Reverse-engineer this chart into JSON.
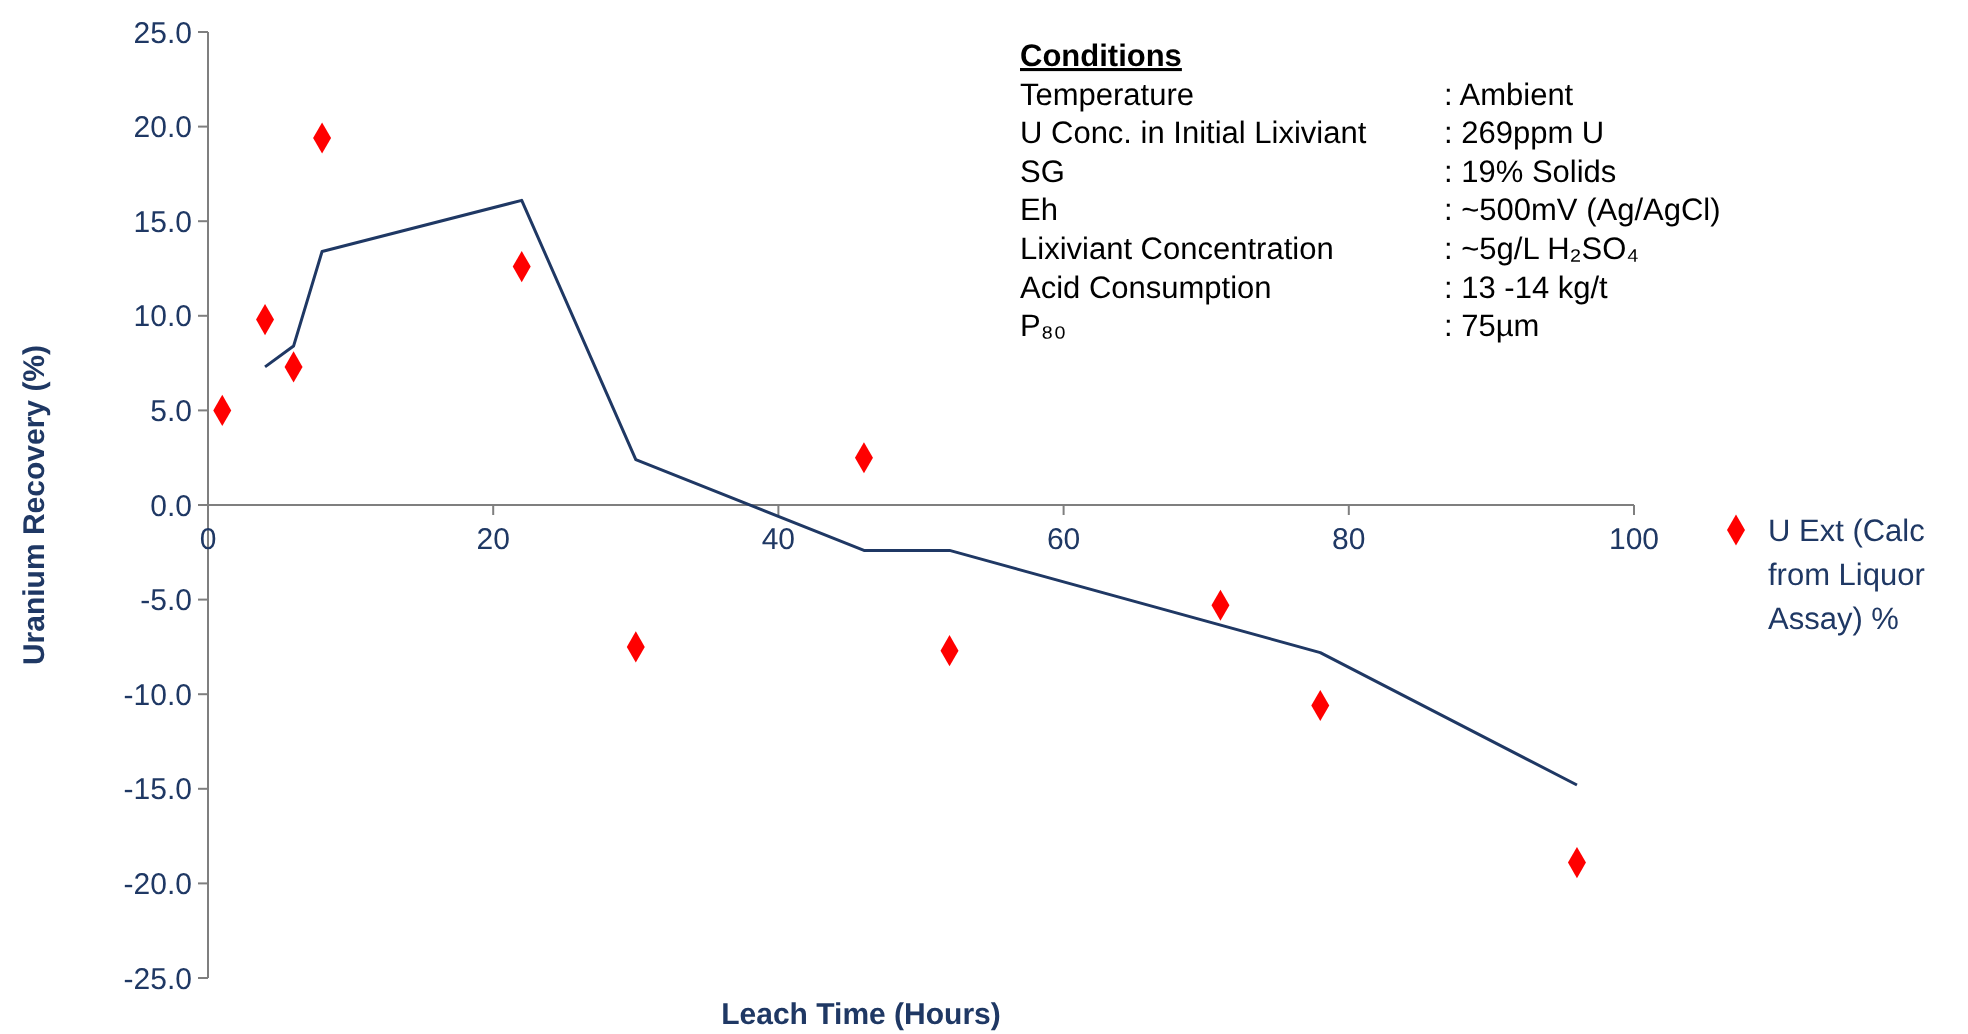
{
  "chart_data": {
    "type": "scatter",
    "xlabel": "Leach Time (Hours)",
    "ylabel": "Uranium Recovery (%)",
    "xlim": [
      0,
      100
    ],
    "xticks": [
      0,
      20,
      40,
      60,
      80,
      100
    ],
    "ylim": [
      -25,
      25
    ],
    "yticks": [
      {
        "value": -25,
        "label": "-25.0"
      },
      {
        "value": -20,
        "label": "-20.0"
      },
      {
        "value": -15,
        "label": "-15.0"
      },
      {
        "value": -10,
        "label": "-10.0"
      },
      {
        "value": -5,
        "label": "-5.0"
      },
      {
        "value": 0,
        "label": "0.0"
      },
      {
        "value": 5,
        "label": "5.0"
      },
      {
        "value": 10,
        "label": "10.0"
      },
      {
        "value": 15,
        "label": "15.0"
      },
      {
        "value": 20,
        "label": "20.0"
      },
      {
        "value": 25,
        "label": "25.0"
      }
    ],
    "grid": false,
    "legend": "right",
    "marker": "diamond",
    "series": [
      {
        "name": "U Ext (Calc from Liquor Assay) %",
        "color": "#ff0000",
        "x": [
          1,
          4,
          6,
          8,
          22,
          30,
          46,
          52,
          71,
          78,
          96
        ],
        "values": [
          5.0,
          9.8,
          7.3,
          19.4,
          12.6,
          -7.5,
          2.5,
          -7.7,
          -5.3,
          -10.6,
          -18.9
        ]
      },
      {
        "type": "line",
        "color": "#1f3864",
        "line_style": "solid",
        "marker": "none",
        "x": [
          4,
          6,
          8,
          22,
          30,
          46,
          52,
          78,
          96
        ],
        "values": [
          7.3,
          8.4,
          13.4,
          16.1,
          2.4,
          -2.4,
          -2.4,
          -7.8,
          -14.8
        ]
      }
    ],
    "annotations": [
      "Conditions",
      "Temperature",
      ":  Ambient",
      "U Conc. in Initial Lixiviant",
      ": 269ppm U",
      "SG",
      ": 19% Solids",
      "Eh",
      ": ~500mV (Ag/AgCl)",
      "Lixiviant Concentration",
      ": ~5g/L H₂SO₄",
      "Acid Consumption",
      ": 13 -14 kg/t",
      "P₈₀",
      ": 75µm"
    ]
  }
}
